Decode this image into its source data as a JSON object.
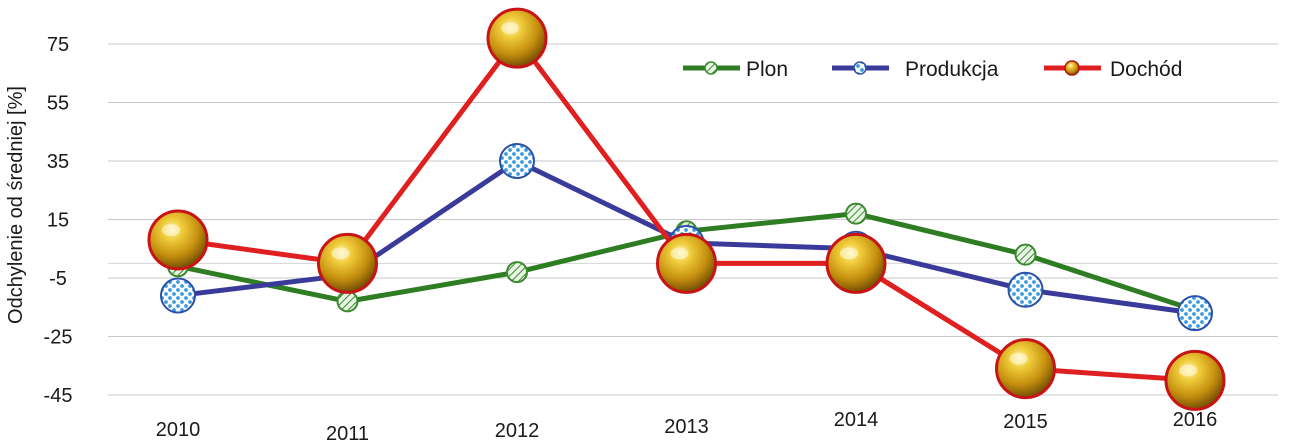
{
  "chart_data": {
    "type": "line",
    "ylabel": "Odchylenie od średniej [%]",
    "xlabel": "",
    "categories": [
      "2010",
      "2011",
      "2012",
      "2013",
      "2014",
      "2015",
      "2016"
    ],
    "yticks": [
      75,
      55,
      35,
      15,
      -5,
      -25,
      -45
    ],
    "ylim": [
      -50,
      82
    ],
    "grid": true,
    "legend_position": "top-right",
    "series": [
      {
        "name": "Plon",
        "color": "#2e7d22",
        "marker": "small-hatched-circle",
        "values": [
          -1,
          -13,
          -3,
          11,
          17,
          3,
          -16
        ]
      },
      {
        "name": "Produkcja",
        "color": "#3a3a9a",
        "marker": "checkered-blue-circle",
        "values": [
          -11,
          -4,
          35,
          7,
          5,
          -9,
          -17
        ]
      },
      {
        "name": "Dochód",
        "color": "#e02020",
        "marker": "gold-ball",
        "values": [
          8,
          0,
          77,
          0,
          0,
          -36,
          -40
        ]
      }
    ]
  }
}
